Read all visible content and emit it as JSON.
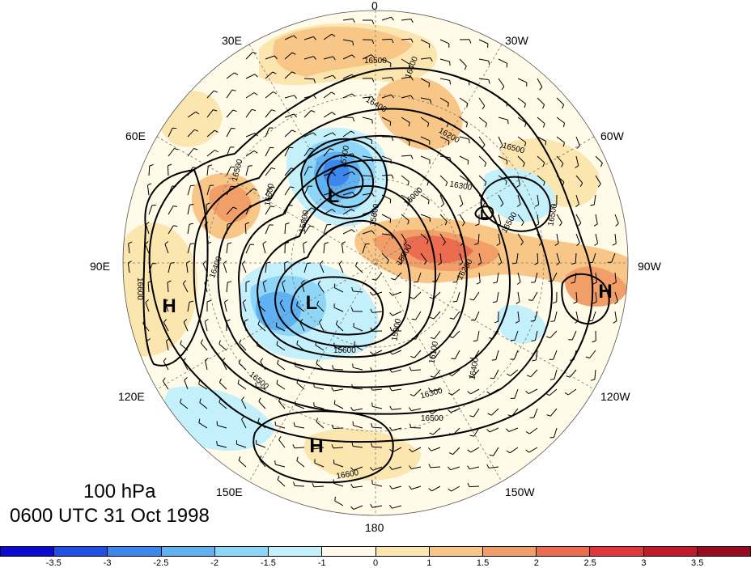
{
  "title": {
    "level": "100 hPa",
    "time": "0600 UTC 31 Oct 1998"
  },
  "longitude_labels": [
    {
      "text": "0",
      "pos": "top"
    },
    {
      "text": "30W",
      "pos": "top-right-1"
    },
    {
      "text": "60W",
      "pos": "top-right-2"
    },
    {
      "text": "90W",
      "pos": "right"
    },
    {
      "text": "120W",
      "pos": "bottom-right-1"
    },
    {
      "text": "150W",
      "pos": "bottom-right-2"
    },
    {
      "text": "180",
      "pos": "bottom"
    },
    {
      "text": "150E",
      "pos": "bottom-left-2"
    },
    {
      "text": "120E",
      "pos": "bottom-left-1"
    },
    {
      "text": "90E",
      "pos": "left"
    },
    {
      "text": "60E",
      "pos": "top-left-2"
    },
    {
      "text": "30E",
      "pos": "top-left-1"
    }
  ],
  "pressure_centers": [
    {
      "label": "L",
      "desc": "low over Scandinavia/Barents"
    },
    {
      "label": "L",
      "desc": "low over Arctic/Siberia"
    },
    {
      "label": "L",
      "desc": "low over Labrador"
    },
    {
      "label": "H",
      "desc": "high over Central Asia"
    },
    {
      "label": "H",
      "desc": "high over Pacific"
    },
    {
      "label": "H",
      "desc": "high over North America"
    }
  ],
  "contour_labels": [
    "16500",
    "16400",
    "16400",
    "16500",
    "16300",
    "16000",
    "16200",
    "16500",
    "16400",
    "16500",
    "16600",
    "16500",
    "16300",
    "16100",
    "15900",
    "15800",
    "15600",
    "15600",
    "15600",
    "16200",
    "16500",
    "16400",
    "16500",
    "16600",
    "16600",
    "15700"
  ],
  "colorbar": {
    "colors": [
      "#0a0ad2",
      "#1f4fe5",
      "#3d86ec",
      "#5fb1f2",
      "#8ed6f8",
      "#c4f0fc",
      "#fffbe8",
      "#fce6b0",
      "#f8c787",
      "#f29e68",
      "#ec6c4f",
      "#e0373a",
      "#c11a2a",
      "#980a1f"
    ],
    "tick_labels": [
      "-3.5",
      "-3",
      "-2.5",
      "-2",
      "-1.5",
      "-1",
      "0",
      "1",
      "1.5",
      "2",
      "2.5",
      "3",
      "3.5"
    ]
  },
  "map_colors": {
    "background_disk": "#fffbe8",
    "warm_light": "#fce6b0",
    "warm_mid": "#f8c787",
    "warm_strong": "#f29e68",
    "warm_deep": "#ec6c4f",
    "cool_light": "#c4f0fc",
    "cool_mid": "#8ed6f8",
    "cool_strong": "#5fb1f2",
    "cool_deep": "#3d86ec",
    "cool_deepest": "#1f4fe5"
  }
}
